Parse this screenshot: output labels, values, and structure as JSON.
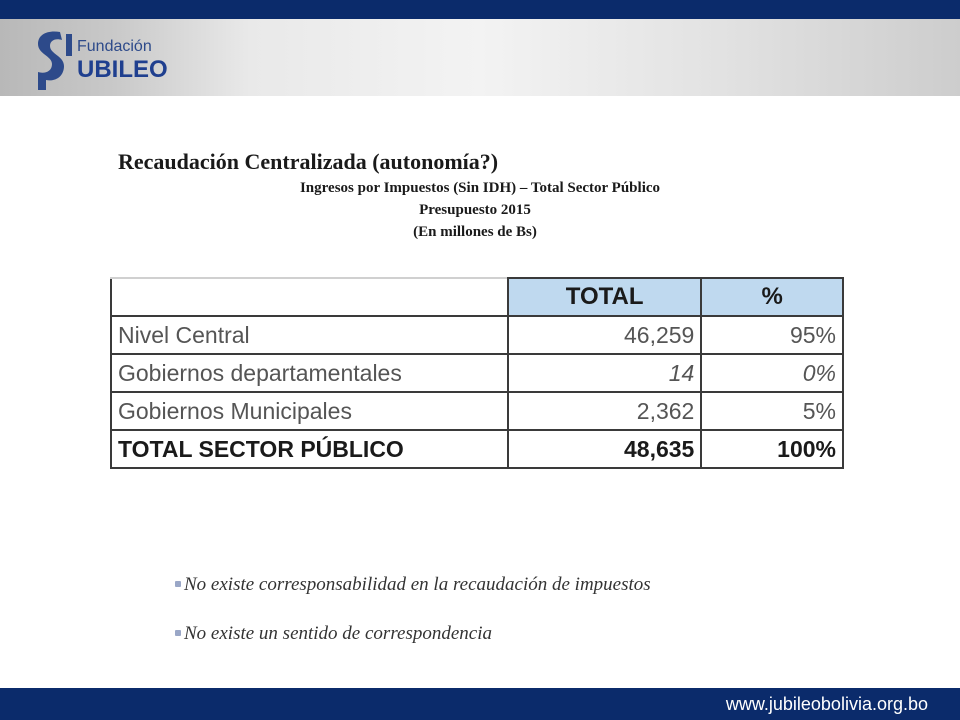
{
  "header": {
    "logo_line1": "Fundación",
    "logo_line2": "UBILEO"
  },
  "colors": {
    "brand_navy": "#0b2b6b",
    "table_header": "#bfd9ef"
  },
  "slide": {
    "title": "Recaudación Centralizada (autonomía?)",
    "subtitle1": "Ingresos por Impuestos (Sin IDH) – Total Sector Público",
    "subtitle2": "Presupuesto 2015",
    "subtitle3": "(En millones de Bs)"
  },
  "table": {
    "headers": [
      "",
      "TOTAL",
      "%"
    ],
    "rows": [
      {
        "label": "Nivel Central",
        "total": "46,259",
        "pct": "95%"
      },
      {
        "label": "Gobiernos departamentales",
        "total": "14",
        "pct": "0%"
      },
      {
        "label": "Gobiernos Municipales",
        "total": "2,362",
        "pct": "5%"
      }
    ],
    "total_row": {
      "label": "TOTAL SECTOR PÚBLICO",
      "total": "48,635",
      "pct": "100%"
    }
  },
  "bullets": [
    "No existe corresponsabilidad en la recaudación de impuestos",
    "No existe un sentido de correspondencia"
  ],
  "footer": {
    "website": "www.jubileobolivia.org.bo"
  }
}
